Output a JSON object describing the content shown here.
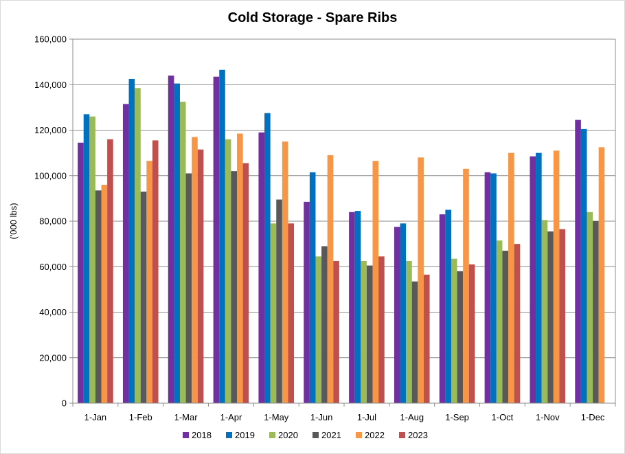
{
  "chart_data": {
    "type": "bar",
    "title": "Cold Storage - Spare Ribs",
    "xlabel": "",
    "ylabel": "('000 lbs)",
    "ylim": [
      0,
      160000
    ],
    "yticks": [
      0,
      20000,
      40000,
      60000,
      80000,
      100000,
      120000,
      140000,
      160000
    ],
    "ytick_labels": [
      "0",
      "20,000",
      "40,000",
      "60,000",
      "80,000",
      "100,000",
      "120,000",
      "140,000",
      "160,000"
    ],
    "grid": true,
    "legend_position": "bottom",
    "categories": [
      "1-Jan",
      "1-Feb",
      "1-Mar",
      "1-Apr",
      "1-May",
      "1-Jun",
      "1-Jul",
      "1-Aug",
      "1-Sep",
      "1-Oct",
      "1-Nov",
      "1-Dec"
    ],
    "series": [
      {
        "name": "2018",
        "color": "#7030A0",
        "values": [
          114500,
          131500,
          144000,
          143500,
          119000,
          88500,
          84000,
          77500,
          83000,
          101500,
          108500,
          124500
        ]
      },
      {
        "name": "2019",
        "color": "#0070C0",
        "values": [
          127000,
          142500,
          140500,
          146500,
          127500,
          101500,
          84500,
          79000,
          85000,
          101000,
          110000,
          120500
        ]
      },
      {
        "name": "2020",
        "color": "#9BBB59",
        "values": [
          126000,
          138500,
          132500,
          116000,
          79000,
          64500,
          62500,
          62500,
          63500,
          71500,
          80500,
          84000
        ]
      },
      {
        "name": "2021",
        "color": "#595959",
        "values": [
          93500,
          93000,
          101000,
          102000,
          89500,
          69000,
          60500,
          53500,
          58000,
          67000,
          75500,
          80000
        ]
      },
      {
        "name": "2022",
        "color": "#F79646",
        "values": [
          96000,
          106500,
          117000,
          118500,
          115000,
          109000,
          106500,
          108000,
          103000,
          110000,
          111000,
          112500
        ]
      },
      {
        "name": "2023",
        "color": "#C0504D",
        "values": [
          116000,
          115500,
          111500,
          105500,
          79000,
          62500,
          64500,
          56500,
          61000,
          70000,
          76500,
          null
        ]
      }
    ]
  }
}
